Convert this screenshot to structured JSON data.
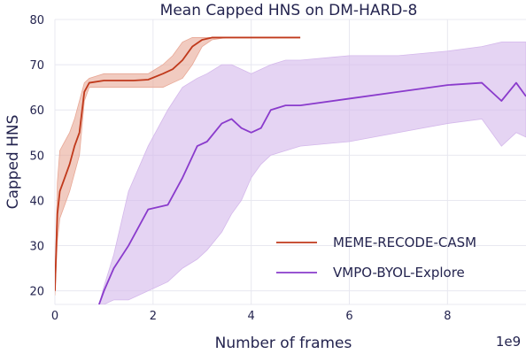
{
  "chart_data": {
    "type": "line",
    "title": "Mean Capped HNS on DM-HARD-8",
    "xlabel": "Number of frames",
    "ylabel": "Capped HNS",
    "x_scale_label": "1e9",
    "xlim": [
      0,
      9.6
    ],
    "ylim": [
      17,
      80
    ],
    "x_ticks": [
      0,
      2,
      4,
      6,
      8
    ],
    "x_tick_labels": [
      "0",
      "2",
      "4",
      "6",
      "8"
    ],
    "y_ticks": [
      20,
      30,
      40,
      50,
      60,
      70,
      80
    ],
    "y_tick_labels": [
      "20",
      "30",
      "40",
      "50",
      "60",
      "70",
      "80"
    ],
    "grid": true,
    "legend_position": "lower-right",
    "series": [
      {
        "name": "MEME-RECODE-CASM",
        "color": "#c0391b",
        "band_color": "#e8a896",
        "x": [
          0.0,
          0.05,
          0.1,
          0.2,
          0.3,
          0.4,
          0.5,
          0.6,
          0.7,
          1.0,
          1.3,
          1.6,
          1.9,
          2.2,
          2.4,
          2.6,
          2.8,
          3.0,
          3.2,
          3.5,
          4.0,
          4.5,
          5.0
        ],
        "y": [
          20,
          37,
          42,
          45,
          48,
          52,
          55,
          64,
          66,
          66.5,
          66.5,
          66.5,
          66.7,
          68,
          69,
          71,
          74,
          75.5,
          76,
          76,
          76,
          76,
          76
        ],
        "y_upper": [
          21,
          44,
          51,
          53,
          55,
          58,
          62,
          66,
          67,
          68,
          68,
          68,
          68,
          70,
          72,
          75,
          76,
          76,
          76,
          76,
          76,
          76,
          76
        ],
        "y_lower": [
          19,
          31,
          36,
          39,
          42,
          46,
          50,
          62,
          65,
          65,
          65,
          65,
          65,
          65,
          66,
          67,
          70,
          74,
          75.5,
          76,
          76,
          76,
          76
        ]
      },
      {
        "name": "VMPO-BYOL-Explore",
        "color": "#8a3bcc",
        "band_color": "#d4b8eb",
        "x": [
          0.9,
          1.0,
          1.2,
          1.5,
          1.9,
          2.3,
          2.6,
          2.9,
          3.1,
          3.4,
          3.6,
          3.8,
          4.0,
          4.2,
          4.4,
          4.7,
          5.0,
          6.0,
          7.0,
          8.0,
          8.7,
          9.1,
          9.4,
          9.6
        ],
        "y": [
          17,
          20,
          25,
          30,
          38,
          39,
          45,
          52,
          53,
          57,
          58,
          56,
          55,
          56,
          60,
          61,
          61,
          62.5,
          64,
          65.5,
          66,
          62,
          66,
          63
        ],
        "y_upper": [
          17,
          21,
          28,
          42,
          52,
          60,
          65,
          67,
          68,
          70,
          70,
          69,
          68,
          69,
          70,
          71,
          71,
          72,
          72,
          73,
          74,
          75,
          75,
          75
        ],
        "y_lower": [
          17,
          17,
          18,
          18,
          20,
          22,
          25,
          27,
          29,
          33,
          37,
          40,
          45,
          48,
          50,
          51,
          52,
          53,
          55,
          57,
          58,
          52,
          55,
          54
        ]
      }
    ]
  }
}
